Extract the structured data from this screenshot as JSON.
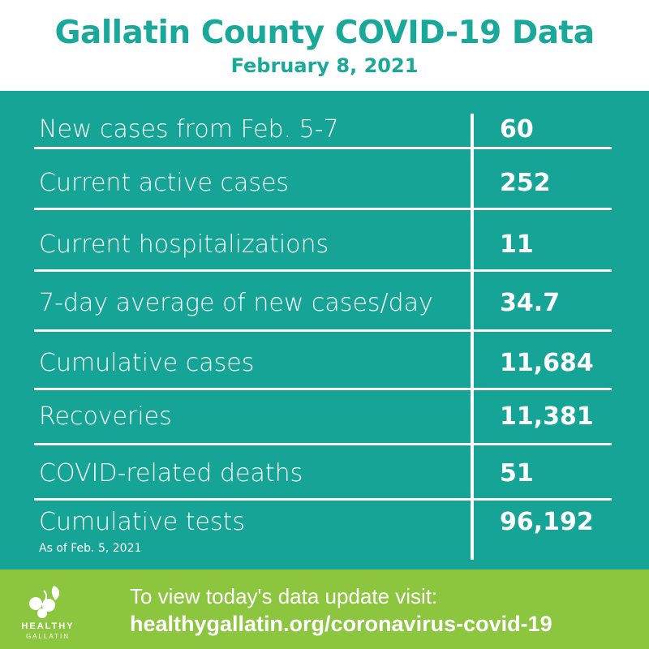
{
  "header": {
    "title": "Gallatin County COVID-19 Data",
    "date": "February 8, 2021"
  },
  "rows": [
    {
      "label": "New cases from Feb. 5-7",
      "value": "60"
    },
    {
      "label": "Current active cases",
      "value": "252"
    },
    {
      "label": "Current hospitalizations",
      "value": "11"
    },
    {
      "label": "7-day average of new cases/day",
      "value": "34.7"
    },
    {
      "label": "Cumulative cases",
      "value": "11,684"
    },
    {
      "label": "Recoveries",
      "value": "11,381"
    },
    {
      "label": "COVID-related deaths",
      "value": "51"
    },
    {
      "label": "Cumulative tests",
      "value": "96,192",
      "note": "As of Feb. 5, 2021"
    }
  ],
  "footer": {
    "logo_line1": "HEALTHY",
    "logo_line2": "GALLATIN",
    "cta_line1": "To view today's data update visit:",
    "cta_line2": "healthygallatin.org/coronavirus-covid-19"
  },
  "colors": {
    "teal": "#16a497",
    "title_teal": "#1aa89a",
    "green": "#8cc63f",
    "white": "#ffffff"
  }
}
